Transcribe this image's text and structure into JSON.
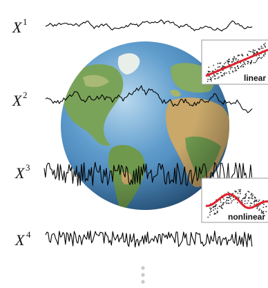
{
  "labels": [
    {
      "name": "X",
      "index": "1"
    },
    {
      "name": "X",
      "index": "2"
    },
    {
      "name": "X",
      "index": "3"
    },
    {
      "name": "X",
      "index": "4"
    }
  ],
  "insets": [
    {
      "text": "linear"
    },
    {
      "text": "nonlinear"
    }
  ],
  "colors": {
    "ocean": "#4f8fc2",
    "land": "#7aa35a",
    "desert": "#c9a86a",
    "series": "#000000",
    "fit": "#e0202a",
    "dots": "#222222",
    "continuation": "#c8c8c8"
  },
  "continuation_icon": "vertical-ellipsis-icon"
}
